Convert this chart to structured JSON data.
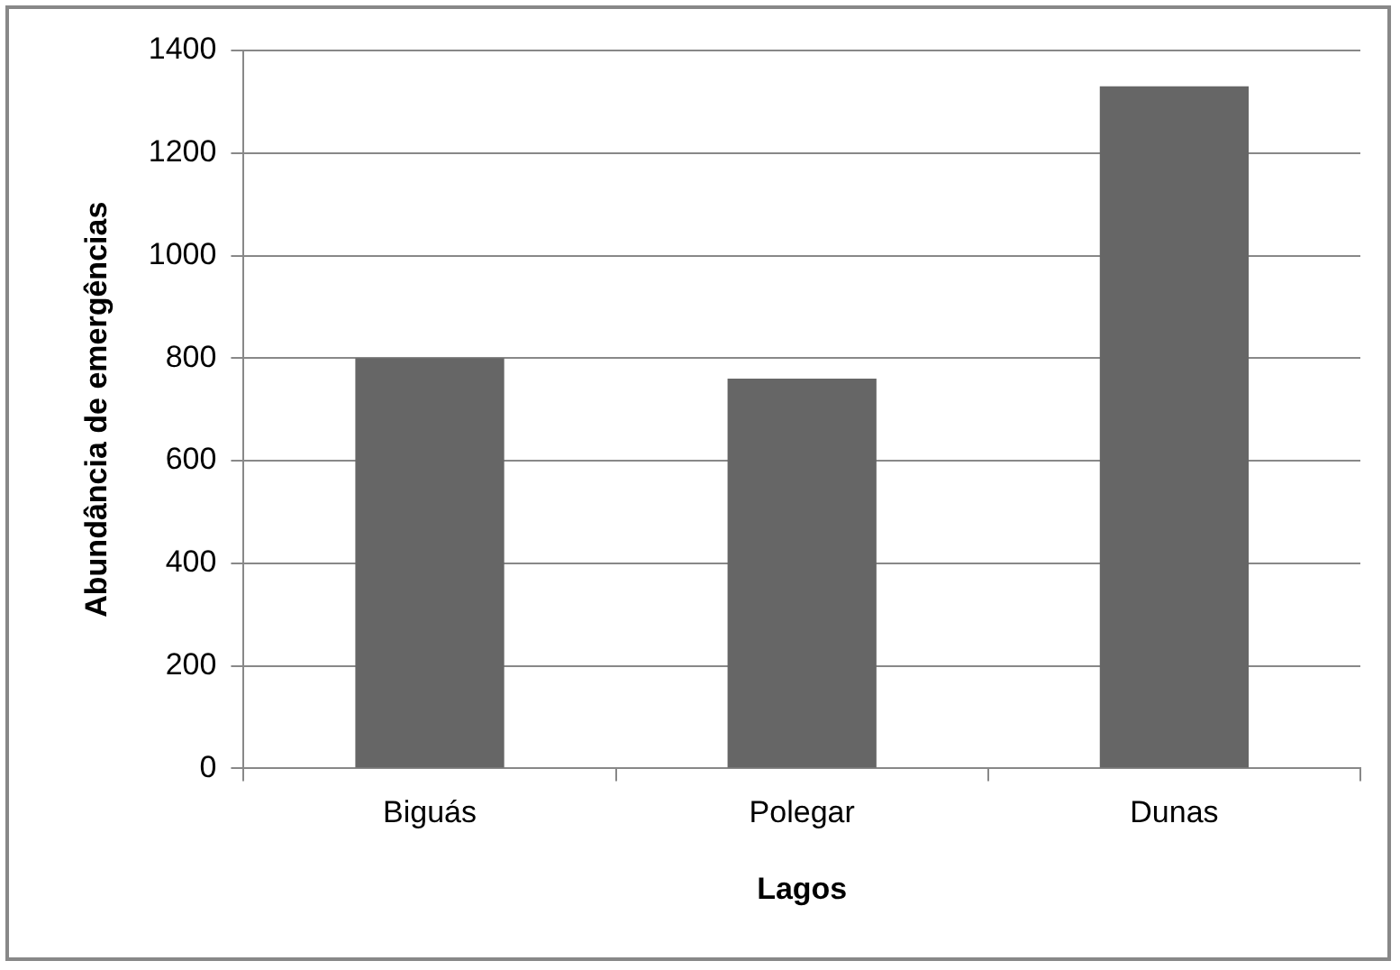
{
  "chart_data": {
    "type": "bar",
    "xlabel": "Lagos",
    "ylabel": "Abundância de emergências",
    "categories": [
      "Biguás",
      "Polegar",
      "Dunas"
    ],
    "values": [
      800,
      760,
      1330
    ],
    "color": "#666666",
    "ylim": [
      0,
      1400
    ],
    "yticks": [
      0,
      200,
      400,
      600,
      800,
      1000,
      1200,
      1400
    ],
    "grid": "y",
    "legend": false
  }
}
